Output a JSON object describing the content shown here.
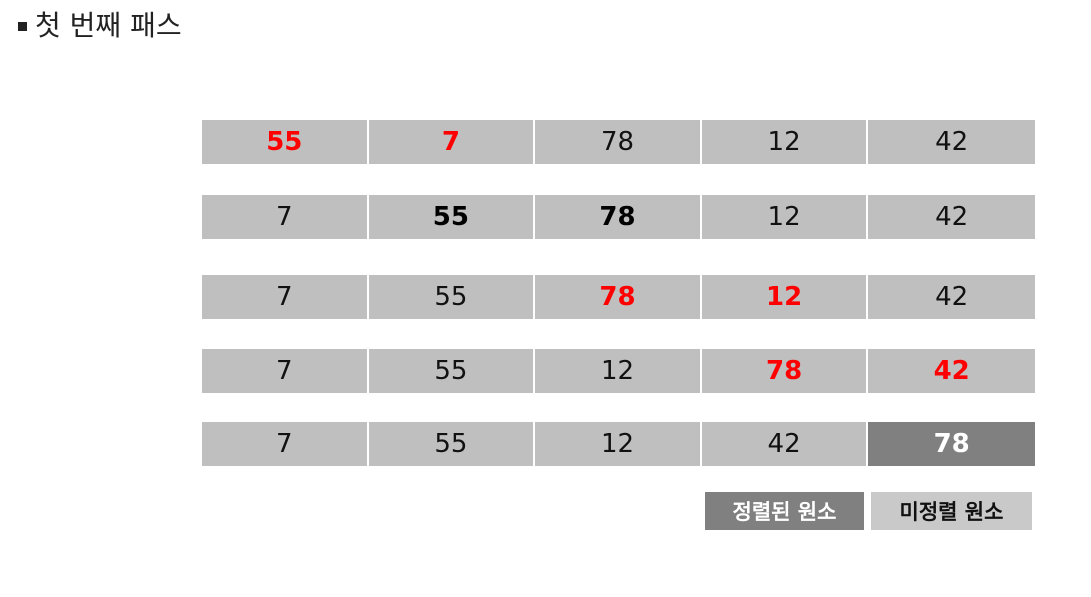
{
  "title": "첫 번째 패스",
  "colors": {
    "cell_bg": "#bfbfbf",
    "highlight_text": "#ff0000",
    "sorted_bg": "#808080",
    "unsorted_bg": "#c9c9c9"
  },
  "rows": [
    {
      "cells": [
        {
          "value": "55",
          "style": "red"
        },
        {
          "value": "7",
          "style": "red"
        },
        {
          "value": "78",
          "style": ""
        },
        {
          "value": "12",
          "style": ""
        },
        {
          "value": "42",
          "style": ""
        }
      ]
    },
    {
      "cells": [
        {
          "value": "7",
          "style": ""
        },
        {
          "value": "55",
          "style": "bold"
        },
        {
          "value": "78",
          "style": "bold"
        },
        {
          "value": "12",
          "style": ""
        },
        {
          "value": "42",
          "style": ""
        }
      ]
    },
    {
      "cells": [
        {
          "value": "7",
          "style": ""
        },
        {
          "value": "55",
          "style": ""
        },
        {
          "value": "78",
          "style": "red"
        },
        {
          "value": "12",
          "style": "red"
        },
        {
          "value": "42",
          "style": ""
        }
      ]
    },
    {
      "cells": [
        {
          "value": "7",
          "style": ""
        },
        {
          "value": "55",
          "style": ""
        },
        {
          "value": "12",
          "style": ""
        },
        {
          "value": "78",
          "style": "red"
        },
        {
          "value": "42",
          "style": "red"
        }
      ]
    },
    {
      "cells": [
        {
          "value": "7",
          "style": ""
        },
        {
          "value": "55",
          "style": ""
        },
        {
          "value": "12",
          "style": ""
        },
        {
          "value": "42",
          "style": ""
        },
        {
          "value": "78",
          "style": "sorted"
        }
      ]
    }
  ],
  "legend": {
    "sorted_label": "정렬된 원소",
    "unsorted_label": "미정렬 원소"
  }
}
